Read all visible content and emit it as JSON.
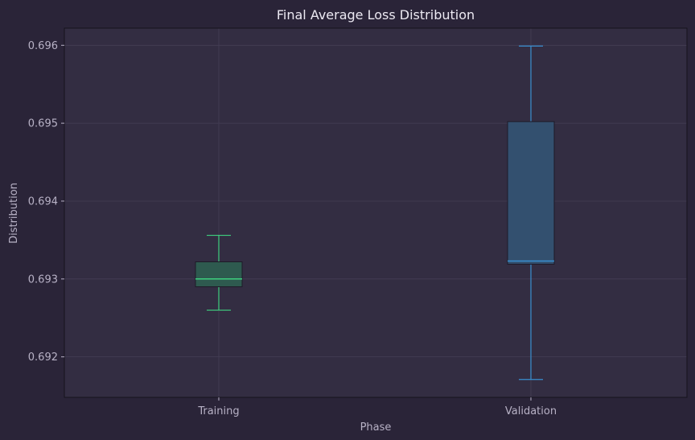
{
  "chart_data": {
    "type": "box",
    "title": "Final Average Loss Distribution",
    "xlabel": "Phase",
    "ylabel": "Distribution",
    "categories": [
      "Training",
      "Validation"
    ],
    "ylim": [
      0.69148,
      0.69622
    ],
    "yticks": [
      "0.692",
      "0.693",
      "0.694",
      "0.695",
      "0.696"
    ],
    "grid": true,
    "boxes": [
      {
        "category": "Training",
        "whisker_low": 0.6926,
        "q1": 0.6929,
        "median": 0.693,
        "q3": 0.69322,
        "whisker_high": 0.69356,
        "color": "#3ecf7e",
        "fill": "#2e5a4f"
      },
      {
        "category": "Validation",
        "whisker_low": 0.69171,
        "q1": 0.69319,
        "median": 0.69323,
        "q3": 0.69502,
        "whisker_high": 0.69599,
        "color": "#3a8fd0",
        "fill": "#33506f"
      }
    ]
  },
  "colors": {
    "background": "#2a2438",
    "plot_background": "#332d42",
    "grid": "#443e55",
    "axis": "#15121c"
  }
}
